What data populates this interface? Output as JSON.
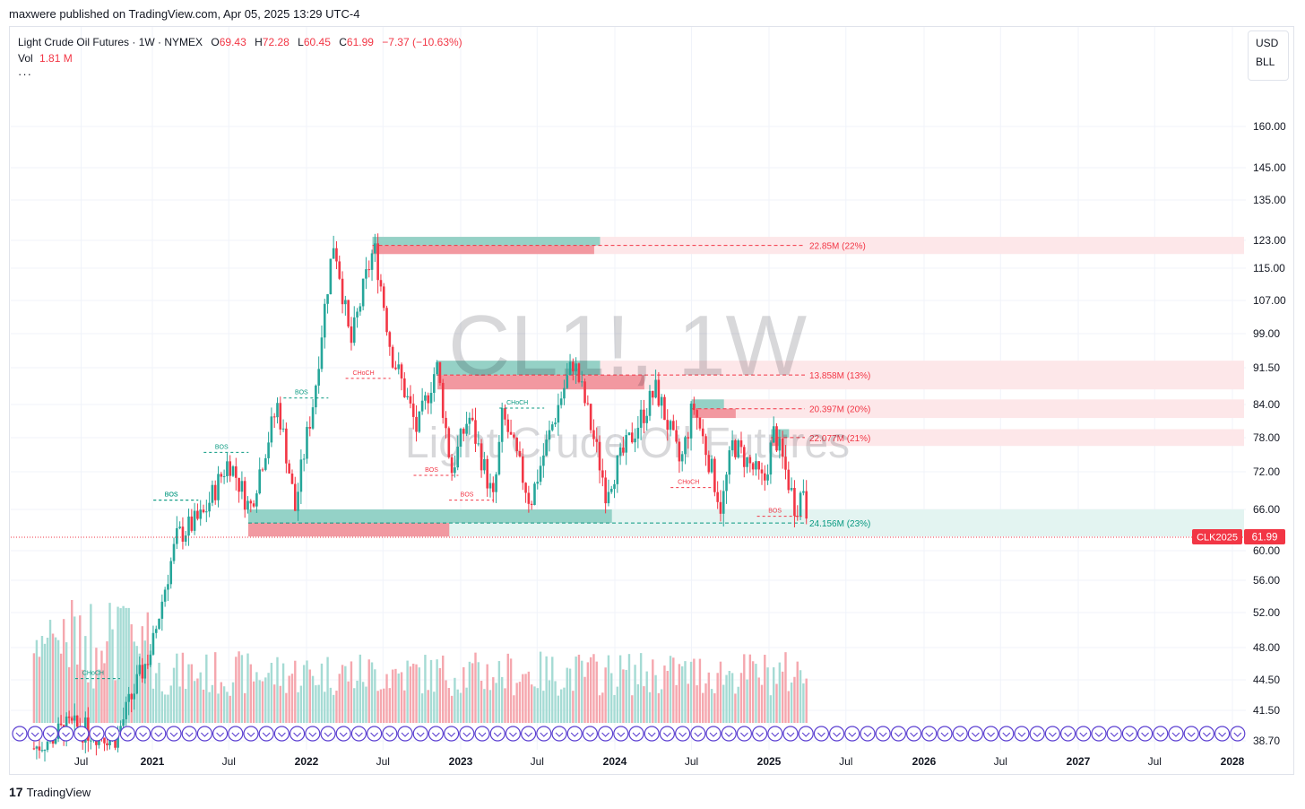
{
  "caption": "maxwere published on TradingView.com, Apr 05, 2025 13:29 UTC-4",
  "legend": {
    "symbol_name": "Light Crude Oil Futures · 1W · NYMEX",
    "o_label": "O",
    "o_value": "69.43",
    "h_label": "H",
    "h_value": "72.28",
    "l_label": "L",
    "l_value": "60.45",
    "c_label": "C",
    "c_value": "61.99",
    "change": "−7.37 (−10.63%)",
    "vol_label": "Vol",
    "vol_value": "1.81 M",
    "more": "···"
  },
  "unit_box": {
    "currency": "USD",
    "unit": "BLL"
  },
  "watermark": {
    "ticker": "CL1!, 1W",
    "name": "Light Crude Oil Futures"
  },
  "price_badge": {
    "symbol": "CLK2025",
    "price": "61.99"
  },
  "footer": {
    "logo": "17",
    "brand": "TradingView"
  },
  "colors": {
    "up": "#26a69a",
    "down": "#f23645",
    "supply_fill": "#f7c3c7",
    "demand_fill": "#8fd0c4",
    "zone_text": "#f23645",
    "green_text": "#089981"
  },
  "chart_data": {
    "type": "candlestick",
    "title": "Light Crude Oil Futures · 1W · NYMEX",
    "y_scale": "log",
    "y_ticks": [
      "160.00",
      "145.00",
      "135.00",
      "123.00",
      "115.00",
      "107.00",
      "99.00",
      "91.50",
      "84.00",
      "78.00",
      "72.00",
      "66.00",
      "60.00",
      "56.00",
      "52.00",
      "48.00",
      "44.50",
      "41.50",
      "38.70"
    ],
    "x_ticks": [
      "Jul",
      "2021",
      "Jul",
      "2022",
      "Jul",
      "2023",
      "Jul",
      "2024",
      "Jul",
      "2025",
      "Jul",
      "2026",
      "Jul",
      "2027",
      "Jul",
      "2028"
    ],
    "price_path": [
      [
        "2020-03-01",
        38
      ],
      [
        "2020-06-01",
        40
      ],
      [
        "2020-10-01",
        39
      ],
      [
        "2021-01-01",
        48
      ],
      [
        "2021-03-01",
        62
      ],
      [
        "2021-05-01",
        65
      ],
      [
        "2021-07-01",
        74
      ],
      [
        "2021-08-20",
        66
      ],
      [
        "2021-10-25",
        84
      ],
      [
        "2021-12-05",
        66
      ],
      [
        "2022-01-20",
        86
      ],
      [
        "2022-03-07",
        123
      ],
      [
        "2022-04-15",
        96
      ],
      [
        "2022-06-10",
        121
      ],
      [
        "2022-07-20",
        95
      ],
      [
        "2022-09-20",
        79
      ],
      [
        "2022-11-05",
        92
      ],
      [
        "2022-12-10",
        72
      ],
      [
        "2023-01-20",
        82
      ],
      [
        "2023-03-20",
        67
      ],
      [
        "2023-04-10",
        82
      ],
      [
        "2023-06-15",
        67
      ],
      [
        "2023-09-25",
        93
      ],
      [
        "2023-12-10",
        69
      ],
      [
        "2024-01-20",
        75
      ],
      [
        "2024-04-08",
        87
      ],
      [
        "2024-06-05",
        73
      ],
      [
        "2024-07-05",
        84
      ],
      [
        "2024-09-10",
        66
      ],
      [
        "2024-10-07",
        77
      ],
      [
        "2024-12-20",
        70
      ],
      [
        "2025-01-13",
        79
      ],
      [
        "2025-03-05",
        66
      ],
      [
        "2025-03-25",
        70
      ],
      [
        "2025-04-04",
        62
      ]
    ],
    "zones": [
      {
        "kind": "supply",
        "low": 119,
        "high": 124,
        "label": "22.85M (22%)"
      },
      {
        "kind": "supply",
        "low": 87,
        "high": 93,
        "label": "13.858M (13%)"
      },
      {
        "kind": "supply",
        "low": 81.5,
        "high": 85,
        "label": "20.397M (20%)"
      },
      {
        "kind": "supply",
        "low": 76.5,
        "high": 79.5,
        "label": "22.077M (21%)"
      },
      {
        "kind": "demand",
        "low": 62,
        "high": 66,
        "label": "24.156M (23%)"
      }
    ],
    "markers": [
      "BOS",
      "BOS",
      "BOS",
      "BOS",
      "CHoCH",
      "CHoCH",
      "CHoCH",
      "BOS",
      "BOS",
      "CHoCH",
      "BOS"
    ],
    "last_price": 61.99,
    "volume_last": "1.81 M"
  }
}
